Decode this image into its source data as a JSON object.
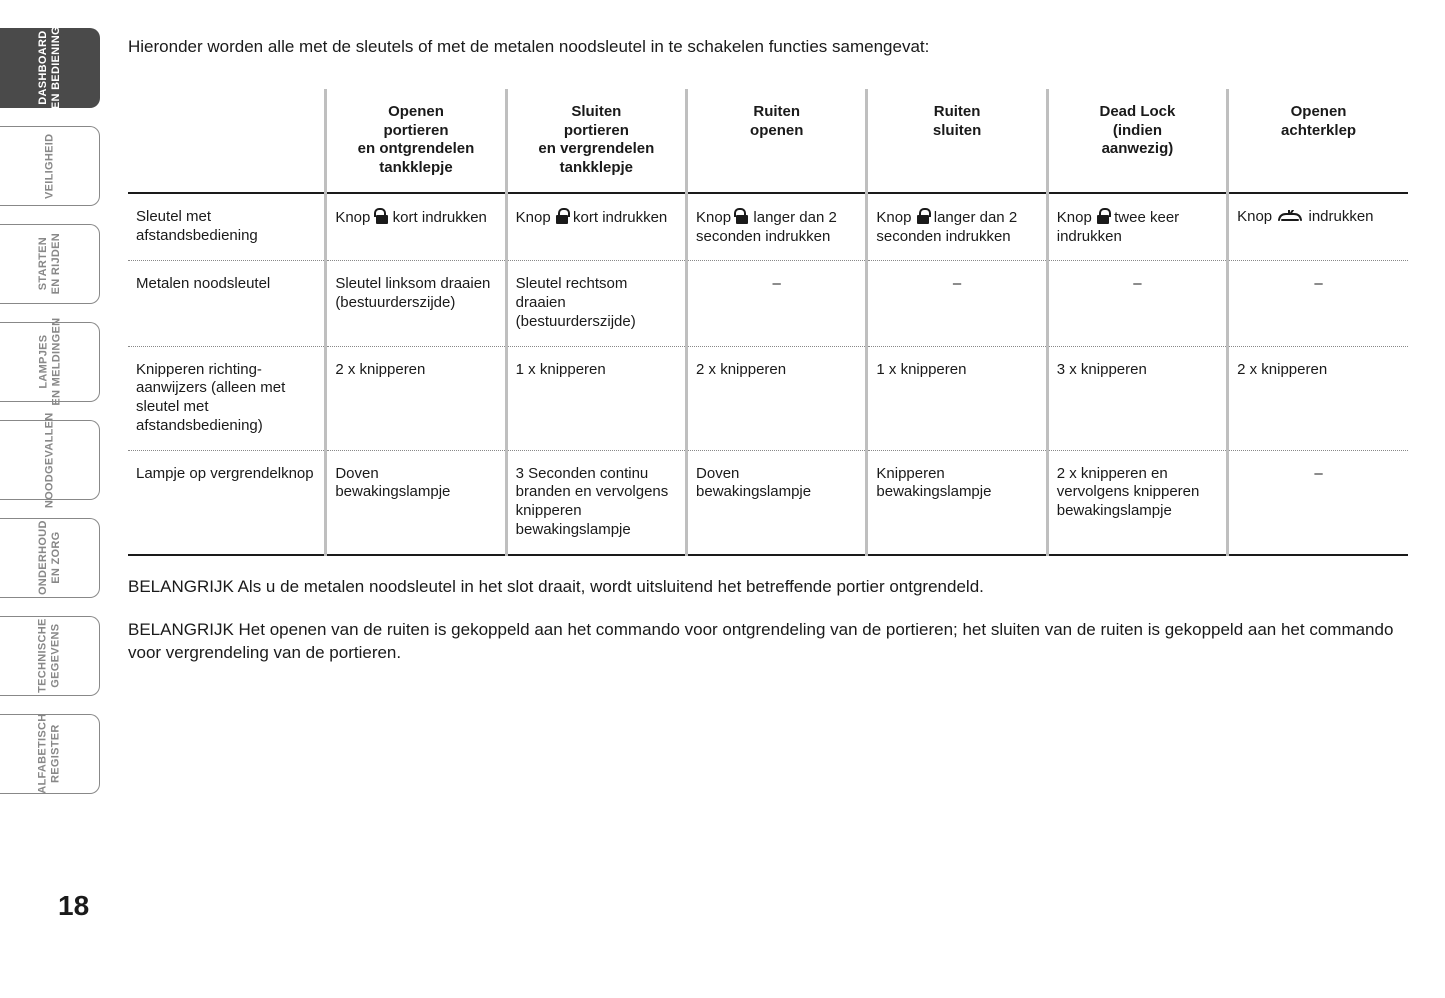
{
  "page_number": "18",
  "sidebar": {
    "tabs": [
      {
        "label": "DASHBOARD\nEN BEDIENING",
        "active": true
      },
      {
        "label": "VEILIGHEID",
        "active": false
      },
      {
        "label": "STARTEN\nEN RIJDEN",
        "active": false
      },
      {
        "label": "LAMPJES\nEN MELDINGEN",
        "active": false
      },
      {
        "label": "NOODGEVALLEN",
        "active": false
      },
      {
        "label": "ONDERHOUD\nEN ZORG",
        "active": false
      },
      {
        "label": "TECHNISCHE\nGEGEVENS",
        "active": false
      },
      {
        "label": "ALFABETISCH\nREGISTER",
        "active": false
      }
    ]
  },
  "intro_text": "Hieronder worden alle met de sleutels of met de metalen noodsleutel in te schakelen functies samengevat:",
  "table": {
    "type": "table",
    "border_color": "#1a1a1a",
    "separator_color": "#bfbfbf",
    "dotted_border_color": "#888888",
    "font_size_pt": 11,
    "header_font_weight": 700,
    "columns": [
      "",
      "Openen\nportieren\nen ontgrendelen\ntankklepje",
      "Sluiten\nportieren\nen vergrendelen\ntankklepje",
      "Ruiten\nopenen",
      "Ruiten\nsluiten",
      "Dead Lock\n(indien\naanwezig)",
      "Openen\nachterklep"
    ],
    "rows": [
      {
        "label": "Sleutel met afstandsbediening",
        "cells": [
          {
            "prefix": "Knop ",
            "icon": "unlock",
            "suffix": " kort indrukken"
          },
          {
            "prefix": "Knop ",
            "icon": "lock",
            "suffix": " kort indrukken"
          },
          {
            "prefix": "Knop ",
            "icon": "unlock",
            "suffix": " langer dan 2 seconden indrukken"
          },
          {
            "prefix": "Knop ",
            "icon": "lock",
            "suffix": " langer dan 2 seconden indrukken"
          },
          {
            "prefix": "Knop ",
            "icon": "lock",
            "suffix": " twee keer indrukken"
          },
          {
            "prefix": "Knop ",
            "icon": "trunk",
            "suffix": " indrukken"
          }
        ]
      },
      {
        "label": "Metalen noodsleutel",
        "cells": [
          {
            "text": "Sleutel linksom draaien (bestuurderszijde)"
          },
          {
            "text": "Sleutel rechtsom draaien (bestuurderszijde)"
          },
          {
            "text": "–",
            "center": true
          },
          {
            "text": "–",
            "center": true
          },
          {
            "text": "–",
            "center": true
          },
          {
            "text": "–",
            "center": true
          }
        ]
      },
      {
        "label": "Knipperen richting-aanwijzers (alleen met sleutel met afstandsbediening)",
        "cells": [
          {
            "text": "2 x knipperen"
          },
          {
            "text": "1 x knipperen"
          },
          {
            "text": "2 x knipperen"
          },
          {
            "text": "1 x knipperen"
          },
          {
            "text": "3 x knipperen"
          },
          {
            "text": "2 x knipperen"
          }
        ]
      },
      {
        "label": "Lampje op vergrendelknop",
        "cells": [
          {
            "text": "Doven bewakingslampje"
          },
          {
            "text": "3 Seconden continu branden en vervolgens knipperen bewakingslampje"
          },
          {
            "text": "Doven bewakingslampje"
          },
          {
            "text": "Knipperen bewakingslampje"
          },
          {
            "text": "2 x knipperen en vervolgens knipperen bewakingslampje"
          },
          {
            "text": "–",
            "center": true
          }
        ]
      }
    ]
  },
  "notes": [
    "BELANGRIJK Als u de metalen noodsleutel in het slot draait, wordt uitsluitend het betreffende portier ontgrendeld.",
    "BELANGRIJK Het openen van de ruiten is gekoppeld aan het commando voor ontgrendeling van de portieren; het sluiten van de ruiten is gekoppeld aan het commando voor vergrendeling van de portieren."
  ],
  "colors": {
    "background": "#ffffff",
    "text": "#1a1a1a",
    "tab_inactive_text": "#888888",
    "tab_active_bg": "#4a4a4a",
    "tab_active_text": "#ffffff"
  }
}
